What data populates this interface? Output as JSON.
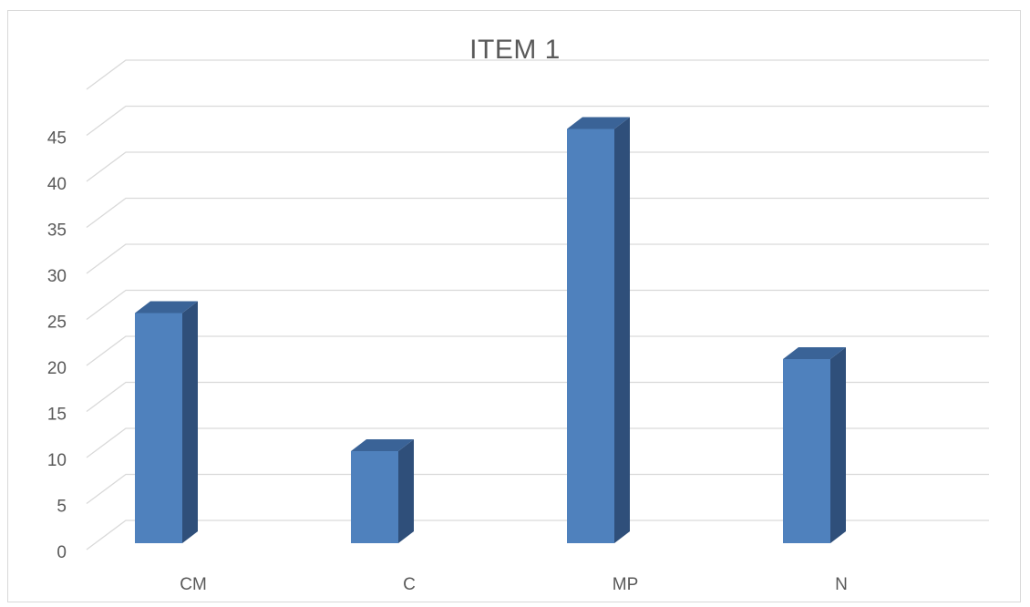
{
  "chart_data": {
    "type": "bar",
    "title": "ITEM 1",
    "categories": [
      "CM",
      "C",
      "MP",
      "N"
    ],
    "values": [
      25,
      10,
      45,
      20
    ],
    "ylim": [
      0,
      45
    ],
    "yticks": [
      0,
      5,
      10,
      15,
      20,
      25,
      30,
      35,
      40,
      45
    ],
    "xlabel": "",
    "ylabel": "",
    "grid": true,
    "legend": "none",
    "style": "3d-column"
  },
  "colors": {
    "bar_front": "#4f81bd",
    "bar_side": "#2f4f7a",
    "bar_top": "#3a6397",
    "grid": "#d9d9d9",
    "text": "#595959"
  }
}
